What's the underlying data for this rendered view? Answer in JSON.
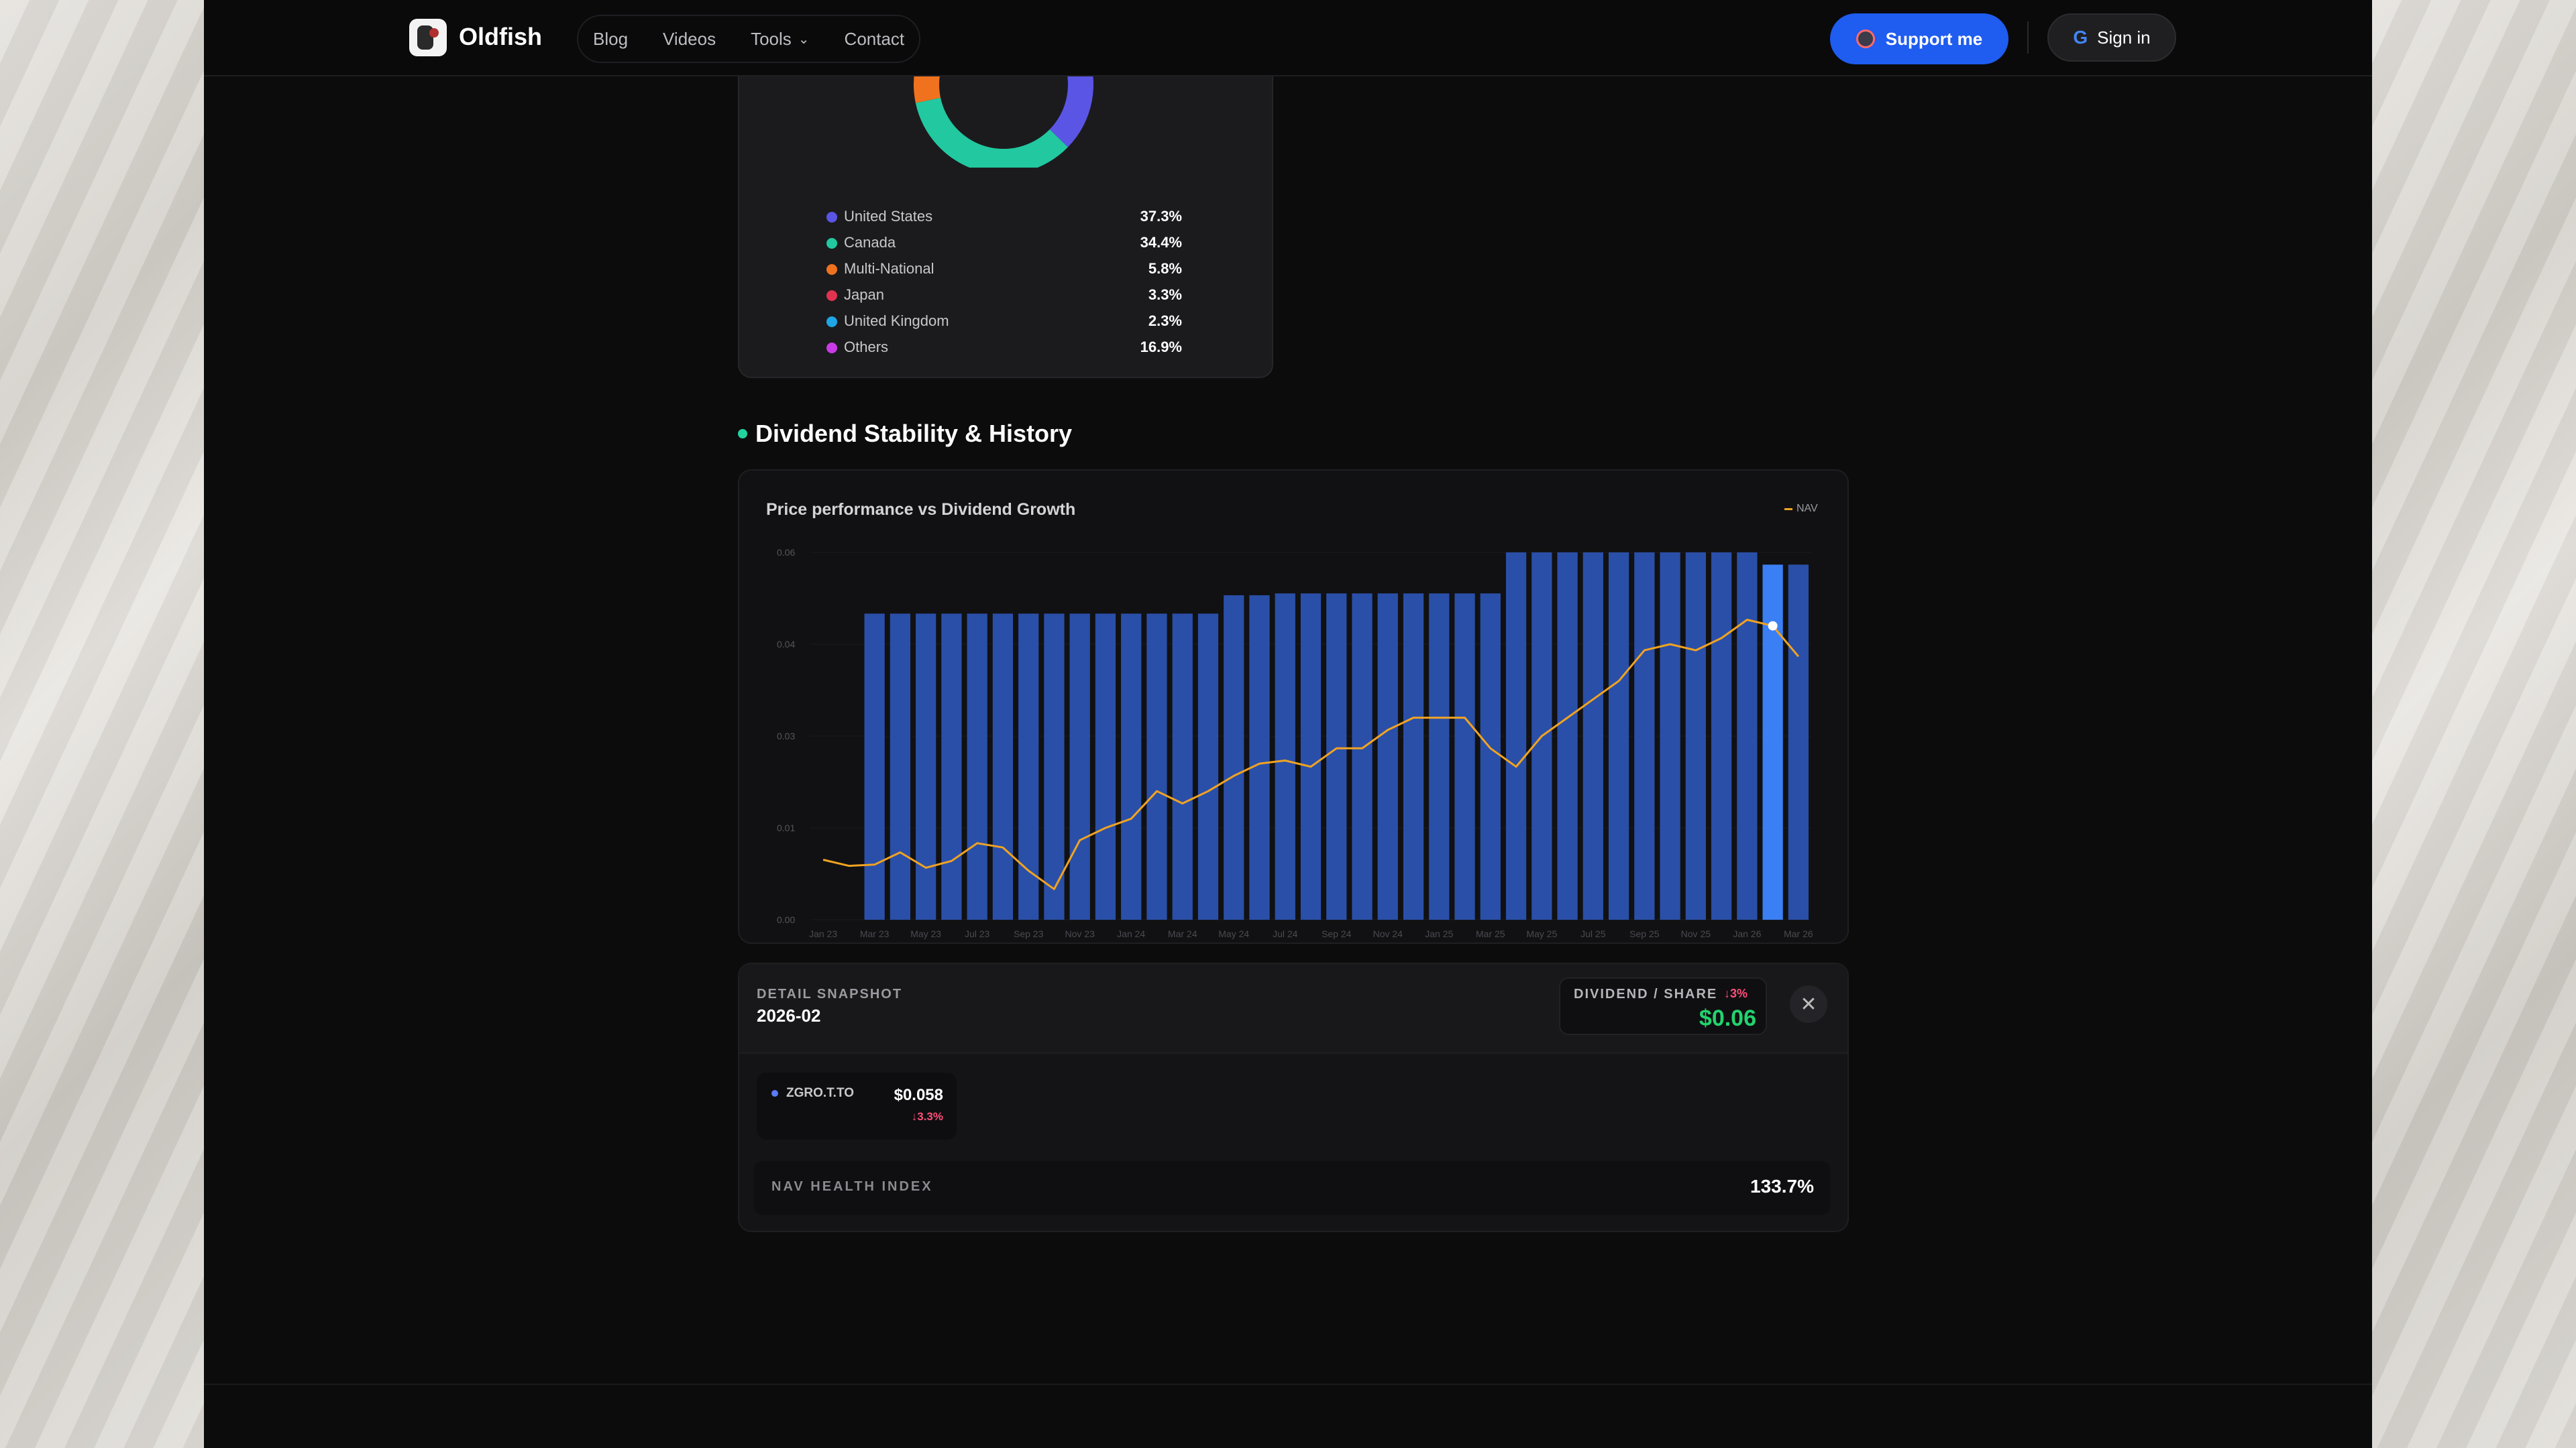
{
  "nav": {
    "brand": "Oldfish",
    "links": [
      "Blog",
      "Videos",
      "Tools",
      "Contact"
    ],
    "support_label": "Support me",
    "signin_label": "Sign in"
  },
  "country_allocation": {
    "items": [
      {
        "name": "United States",
        "pct": "37.3%",
        "color": "#5b55e6"
      },
      {
        "name": "Canada",
        "pct": "34.4%",
        "color": "#22c8a0"
      },
      {
        "name": "Multi-National",
        "pct": "5.8%",
        "color": "#f0721f"
      },
      {
        "name": "Japan",
        "pct": "3.3%",
        "color": "#e0334f"
      },
      {
        "name": "United Kingdom",
        "pct": "2.3%",
        "color": "#1ea6e6"
      },
      {
        "name": "Others",
        "pct": "16.9%",
        "color": "#c93be6"
      }
    ]
  },
  "section": {
    "title": "Dividend Stability & History"
  },
  "chart_data": {
    "type": "bar",
    "title": "Price performance vs Dividend Growth",
    "legend": [
      "NAV"
    ],
    "legend_placement": "top-right",
    "ylim": [
      0,
      0.06
    ],
    "y_ticks": [
      "0.00",
      "0.01",
      "0.03",
      "0.04",
      "0.06"
    ],
    "x_ticks": [
      "Jan 23",
      "Mar 23",
      "May 23",
      "Jul 23",
      "Sep 23",
      "Nov 23",
      "Jan 24",
      "Mar 24",
      "May 24",
      "Jul 24",
      "Sep 24",
      "Nov 24",
      "Jan 25",
      "Mar 25",
      "May 25",
      "Jul 25",
      "Sep 25",
      "Nov 25",
      "Jan 26",
      "Mar 26"
    ],
    "bar_color": "#2a4fa8",
    "highlight_color": "#3b7ff5",
    "line_color": "#f0a322",
    "bars": [
      {
        "month": "2023-01",
        "value": null
      },
      {
        "month": "2023-02",
        "value": null
      },
      {
        "month": "2023-03",
        "value": 0.05
      },
      {
        "month": "2023-04",
        "value": 0.05
      },
      {
        "month": "2023-05",
        "value": 0.05
      },
      {
        "month": "2023-06",
        "value": 0.05
      },
      {
        "month": "2023-07",
        "value": 0.05
      },
      {
        "month": "2023-08",
        "value": 0.05
      },
      {
        "month": "2023-09",
        "value": 0.05
      },
      {
        "month": "2023-10",
        "value": 0.05
      },
      {
        "month": "2023-11",
        "value": 0.05
      },
      {
        "month": "2023-12",
        "value": 0.05
      },
      {
        "month": "2024-01",
        "value": 0.05
      },
      {
        "month": "2024-02",
        "value": 0.05
      },
      {
        "month": "2024-03",
        "value": 0.05
      },
      {
        "month": "2024-04",
        "value": 0.05
      },
      {
        "month": "2024-05",
        "value": 0.053
      },
      {
        "month": "2024-06",
        "value": 0.053
      },
      {
        "month": "2024-07",
        "value": 0.0533
      },
      {
        "month": "2024-08",
        "value": 0.0533
      },
      {
        "month": "2024-09",
        "value": 0.0533
      },
      {
        "month": "2024-10",
        "value": 0.0533
      },
      {
        "month": "2024-11",
        "value": 0.0533
      },
      {
        "month": "2024-12",
        "value": 0.0533
      },
      {
        "month": "2025-01",
        "value": 0.0533
      },
      {
        "month": "2025-02",
        "value": 0.0533
      },
      {
        "month": "2025-03",
        "value": 0.0533
      },
      {
        "month": "2025-04",
        "value": 0.06
      },
      {
        "month": "2025-05",
        "value": 0.06
      },
      {
        "month": "2025-06",
        "value": 0.06
      },
      {
        "month": "2025-07",
        "value": 0.06
      },
      {
        "month": "2025-08",
        "value": 0.06
      },
      {
        "month": "2025-09",
        "value": 0.06
      },
      {
        "month": "2025-10",
        "value": 0.06
      },
      {
        "month": "2025-11",
        "value": 0.06
      },
      {
        "month": "2025-12",
        "value": 0.06
      },
      {
        "month": "2026-01",
        "value": 0.06
      },
      {
        "month": "2026-02",
        "value": 0.058
      },
      {
        "month": "2026-03",
        "value": 0.058
      }
    ],
    "nav_line": [
      0.0098,
      0.0088,
      0.009,
      0.011,
      0.0085,
      0.0096,
      0.0125,
      0.0118,
      0.008,
      0.005,
      0.013,
      0.015,
      0.0165,
      0.021,
      0.019,
      0.021,
      0.0235,
      0.0255,
      0.026,
      0.025,
      0.028,
      0.028,
      0.031,
      0.033,
      0.033,
      0.033,
      0.028,
      0.025,
      0.03,
      0.033,
      0.036,
      0.039,
      0.044,
      0.045,
      0.044,
      0.046,
      0.049,
      0.048,
      0.043
    ],
    "highlighted": "2026-02"
  },
  "detail": {
    "label": "DETAIL SNAPSHOT",
    "period": "2026-02",
    "dps_label": "DIVIDEND / SHARE",
    "dps_change": "↓3%",
    "dps_value": "$0.06",
    "ticker": "ZGRO.T.TO",
    "ticker_value": "$0.058",
    "ticker_change": "↓3.3%",
    "nav_health_label": "NAV HEALTH INDEX",
    "nav_health_value": "133.7%"
  }
}
